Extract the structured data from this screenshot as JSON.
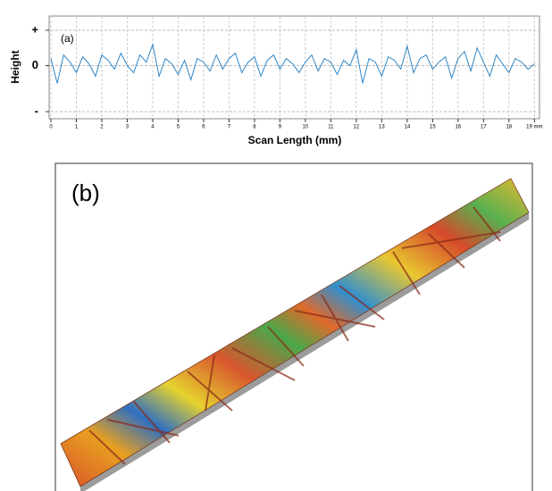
{
  "chart_data": {
    "type": "line",
    "annotation": "(a)",
    "xlabel": "Scan Length (mm)",
    "ylabel": "Height",
    "x": [
      0,
      0.25,
      0.5,
      0.75,
      1,
      1.25,
      1.5,
      1.75,
      2,
      2.25,
      2.5,
      2.75,
      3,
      3.25,
      3.5,
      3.75,
      4,
      4.25,
      4.5,
      4.75,
      5,
      5.25,
      5.5,
      5.75,
      6,
      6.25,
      6.5,
      6.75,
      7,
      7.25,
      7.5,
      7.75,
      8,
      8.25,
      8.5,
      8.75,
      9,
      9.25,
      9.5,
      9.75,
      10,
      10.25,
      10.5,
      10.75,
      11,
      11.25,
      11.5,
      11.75,
      12,
      12.25,
      12.5,
      12.75,
      13,
      13.25,
      13.5,
      13.75,
      14,
      14.25,
      14.5,
      14.75,
      15,
      15.25,
      15.5,
      15.75,
      16,
      16.25,
      16.5,
      16.75,
      17,
      17.25,
      17.5,
      17.75,
      18,
      18.25,
      18.5,
      18.75,
      19
    ],
    "values": [
      0.2,
      -0.5,
      0.3,
      0.1,
      -0.2,
      0.25,
      0.05,
      -0.3,
      0.3,
      0.15,
      -0.1,
      0.35,
      0.0,
      -0.2,
      0.3,
      0.1,
      0.6,
      -0.3,
      0.2,
      0.05,
      -0.25,
      0.15,
      -0.4,
      0.2,
      0.1,
      -0.15,
      0.3,
      -0.1,
      0.2,
      0.35,
      -0.2,
      0.1,
      0.25,
      -0.3,
      0.15,
      0.3,
      -0.1,
      0.2,
      0.05,
      -0.2,
      0.1,
      0.3,
      -0.15,
      0.2,
      0.1,
      -0.25,
      0.15,
      0.0,
      0.45,
      -0.5,
      0.2,
      0.1,
      -0.3,
      0.25,
      0.15,
      -0.1,
      0.55,
      -0.2,
      0.2,
      0.3,
      -0.1,
      0.1,
      0.25,
      -0.35,
      0.2,
      0.4,
      -0.15,
      0.5,
      0.1,
      -0.3,
      0.3,
      0.05,
      -0.2,
      0.2,
      0.1,
      -0.1,
      0.05
    ],
    "color": "#2f86c6",
    "xlim": [
      0,
      19.2
    ],
    "xticks": [
      0,
      1,
      2,
      3,
      4,
      5,
      6,
      7,
      8,
      9,
      10,
      11,
      12,
      13,
      14,
      15,
      16,
      17,
      18,
      {
        "value": 19,
        "label": "19 mm"
      }
    ],
    "ylim": [
      -1.5,
      1.4
    ],
    "yticks": [
      {
        "value": 1,
        "label": "+"
      },
      0,
      {
        "value": -1.3,
        "label": "-"
      }
    ],
    "grid": true
  },
  "image_panel": {
    "label": "(b)"
  }
}
